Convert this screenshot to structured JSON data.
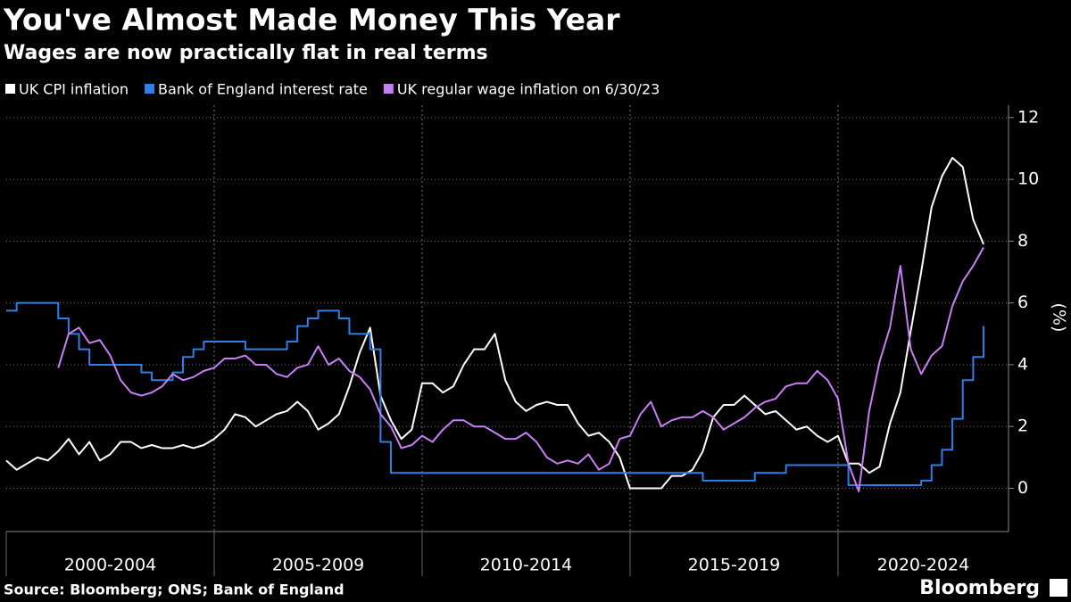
{
  "chart_data": {
    "type": "line",
    "title": "You've Almost Made Money This Year",
    "subtitle": "Wages are now practically flat in real terms",
    "y_label": "(%)",
    "source": "Source: Bloomberg; ONS; Bank of England",
    "brand": "Bloomberg",
    "xlim": [
      2000,
      2024.1
    ],
    "xticks": [
      2000,
      2005,
      2010,
      2015,
      2020
    ],
    "x_period_labels": [
      "2000-2004",
      "2005-2009",
      "2010-2014",
      "2015-2019",
      "2020-2024"
    ],
    "ylim": [
      -1.4,
      12.4
    ],
    "yticks": [
      0,
      2,
      4,
      6,
      8,
      10,
      12
    ],
    "grid": true,
    "x": [
      2000,
      2000.25,
      2000.5,
      2000.75,
      2001,
      2001.25,
      2001.5,
      2001.75,
      2002,
      2002.25,
      2002.5,
      2002.75,
      2003,
      2003.25,
      2003.5,
      2003.75,
      2004,
      2004.25,
      2004.5,
      2004.75,
      2005,
      2005.25,
      2005.5,
      2005.75,
      2006,
      2006.25,
      2006.5,
      2006.75,
      2007,
      2007.25,
      2007.5,
      2007.75,
      2008,
      2008.25,
      2008.5,
      2008.75,
      2009,
      2009.25,
      2009.5,
      2009.75,
      2010,
      2010.25,
      2010.5,
      2010.75,
      2011,
      2011.25,
      2011.5,
      2011.75,
      2012,
      2012.25,
      2012.5,
      2012.75,
      2013,
      2013.25,
      2013.5,
      2013.75,
      2014,
      2014.25,
      2014.5,
      2014.75,
      2015,
      2015.25,
      2015.5,
      2015.75,
      2016,
      2016.25,
      2016.5,
      2016.75,
      2017,
      2017.25,
      2017.5,
      2017.75,
      2018,
      2018.25,
      2018.5,
      2018.75,
      2019,
      2019.25,
      2019.5,
      2019.75,
      2020,
      2020.25,
      2020.5,
      2020.75,
      2021,
      2021.25,
      2021.5,
      2021.75,
      2022,
      2022.25,
      2022.5,
      2022.75,
      2023,
      2023.25,
      2023.5
    ],
    "series": [
      {
        "name": "UK CPI inflation",
        "color": "#ffffff",
        "values": [
          0.9,
          0.6,
          0.8,
          1.0,
          0.9,
          1.2,
          1.6,
          1.1,
          1.5,
          0.9,
          1.1,
          1.5,
          1.5,
          1.3,
          1.4,
          1.3,
          1.3,
          1.4,
          1.3,
          1.4,
          1.6,
          1.9,
          2.4,
          2.3,
          2.0,
          2.2,
          2.4,
          2.5,
          2.8,
          2.5,
          1.9,
          2.1,
          2.4,
          3.3,
          4.4,
          5.2,
          3.0,
          2.2,
          1.6,
          1.9,
          3.4,
          3.4,
          3.1,
          3.3,
          4.0,
          4.5,
          4.5,
          5.0,
          3.5,
          2.8,
          2.5,
          2.7,
          2.8,
          2.7,
          2.7,
          2.1,
          1.7,
          1.8,
          1.5,
          1.0,
          0.0,
          0.0,
          0.0,
          0.0,
          0.4,
          0.4,
          0.6,
          1.2,
          2.3,
          2.7,
          2.7,
          3.0,
          2.7,
          2.4,
          2.5,
          2.2,
          1.9,
          2.0,
          1.7,
          1.5,
          1.7,
          0.8,
          0.8,
          0.5,
          0.7,
          2.1,
          3.1,
          5.1,
          7.0,
          9.1,
          10.1,
          10.7,
          10.4,
          8.7,
          7.9
        ]
      },
      {
        "name": "Bank of England interest rate",
        "color": "#2f7fe8",
        "step": true,
        "values": [
          5.75,
          6.0,
          6.0,
          6.0,
          6.0,
          5.5,
          5.0,
          4.5,
          4.0,
          4.0,
          4.0,
          4.0,
          4.0,
          3.75,
          3.5,
          3.5,
          3.75,
          4.25,
          4.5,
          4.75,
          4.75,
          4.75,
          4.75,
          4.5,
          4.5,
          4.5,
          4.5,
          4.75,
          5.25,
          5.5,
          5.75,
          5.75,
          5.5,
          5.0,
          5.0,
          4.5,
          1.5,
          0.5,
          0.5,
          0.5,
          0.5,
          0.5,
          0.5,
          0.5,
          0.5,
          0.5,
          0.5,
          0.5,
          0.5,
          0.5,
          0.5,
          0.5,
          0.5,
          0.5,
          0.5,
          0.5,
          0.5,
          0.5,
          0.5,
          0.5,
          0.5,
          0.5,
          0.5,
          0.5,
          0.5,
          0.5,
          0.5,
          0.25,
          0.25,
          0.25,
          0.25,
          0.25,
          0.5,
          0.5,
          0.5,
          0.75,
          0.75,
          0.75,
          0.75,
          0.75,
          0.75,
          0.1,
          0.1,
          0.1,
          0.1,
          0.1,
          0.1,
          0.1,
          0.25,
          0.75,
          1.25,
          2.25,
          3.5,
          4.25,
          5.25
        ]
      },
      {
        "name": "UK regular wage inflation on 6/30/23",
        "color": "#c67ff5",
        "values": [
          null,
          null,
          null,
          null,
          null,
          3.9,
          5.0,
          5.2,
          4.7,
          4.8,
          4.3,
          3.5,
          3.1,
          3.0,
          3.1,
          3.3,
          3.7,
          3.5,
          3.6,
          3.8,
          3.9,
          4.2,
          4.2,
          4.3,
          4.0,
          4.0,
          3.7,
          3.6,
          3.9,
          4.0,
          4.6,
          4.0,
          4.2,
          3.8,
          3.6,
          3.2,
          2.4,
          2.0,
          1.3,
          1.4,
          1.7,
          1.5,
          1.9,
          2.2,
          2.2,
          2.0,
          2.0,
          1.8,
          1.6,
          1.6,
          1.8,
          1.5,
          1.0,
          0.8,
          0.9,
          0.8,
          1.1,
          0.6,
          0.8,
          1.6,
          1.7,
          2.4,
          2.8,
          2.0,
          2.2,
          2.3,
          2.3,
          2.5,
          2.3,
          1.9,
          2.1,
          2.3,
          2.6,
          2.8,
          2.9,
          3.3,
          3.4,
          3.4,
          3.8,
          3.5,
          2.9,
          0.8,
          -0.1,
          2.5,
          4.1,
          5.2,
          7.2,
          4.5,
          3.7,
          4.3,
          4.6,
          5.9,
          6.7,
          7.2,
          7.8
        ]
      }
    ]
  }
}
